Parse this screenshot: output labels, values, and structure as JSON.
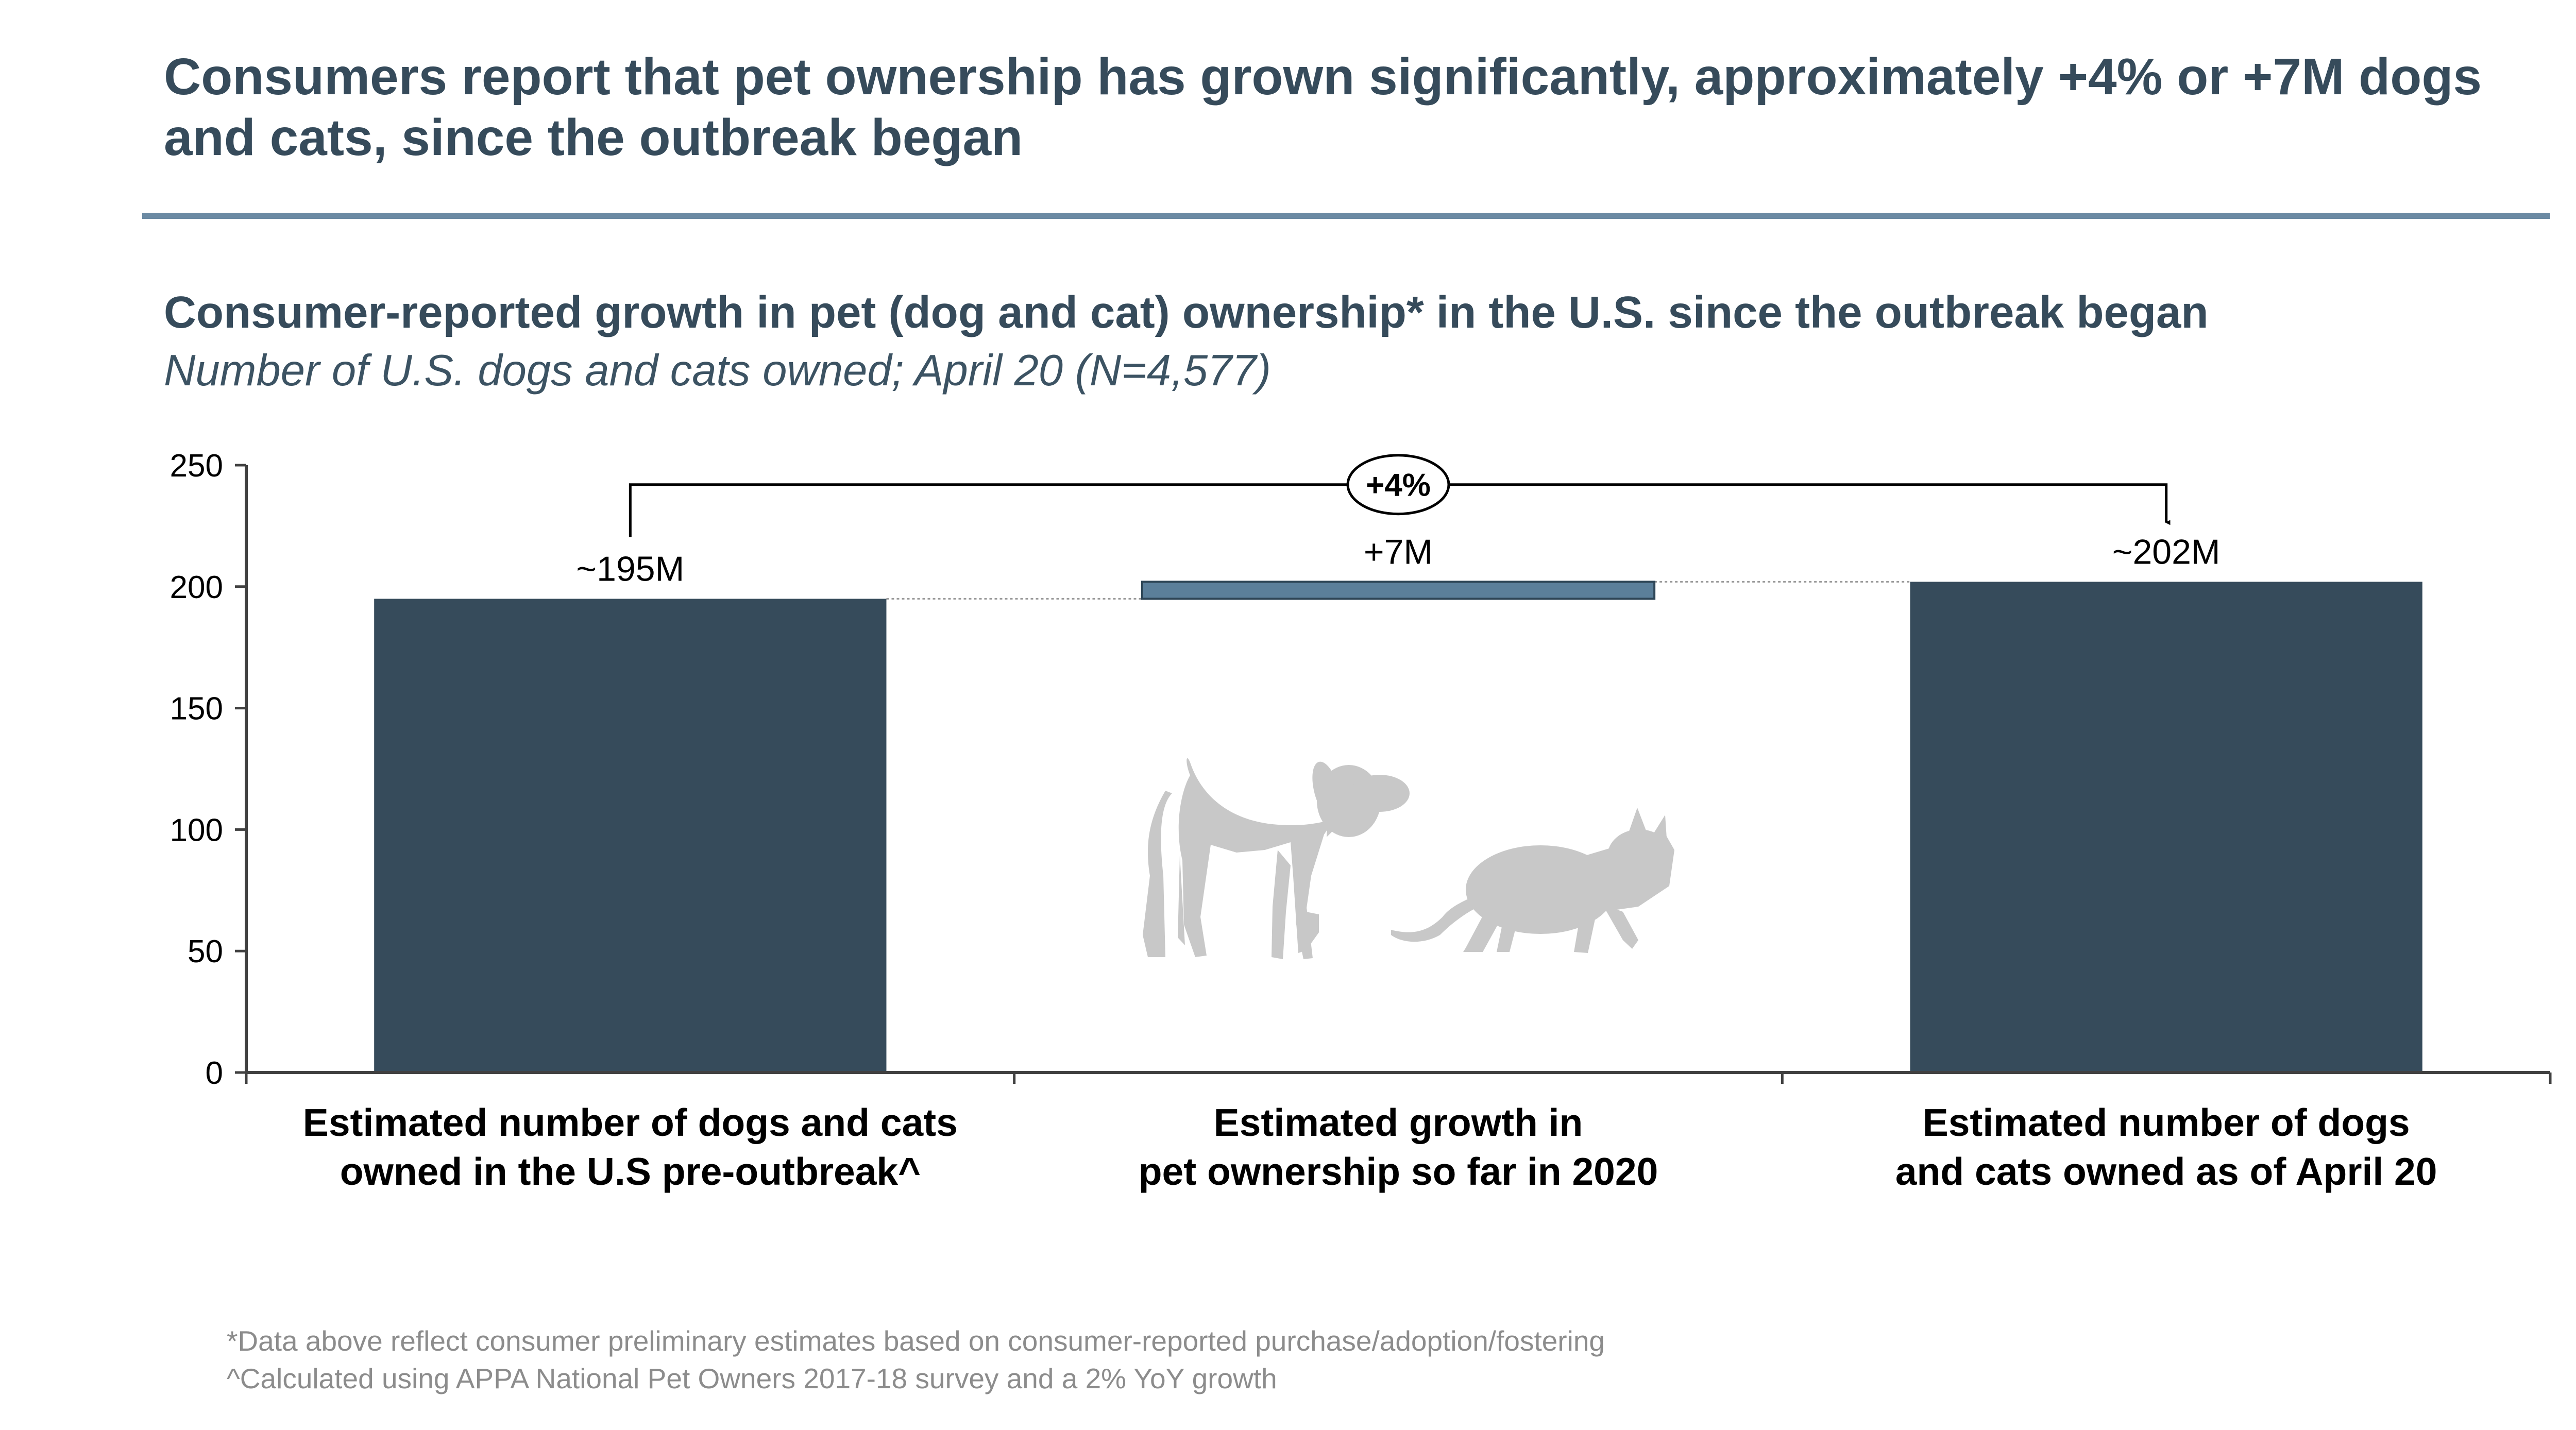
{
  "slide": {
    "title": "Consumers report that pet ownership has grown significantly, approximately +4% or +7M dogs and cats, since the outbreak began"
  },
  "chart_data": {
    "type": "bar",
    "title": "Consumer-reported growth in pet (dog and cat) ownership* in the U.S. since the outbreak began",
    "subtitle": "Number of U.S. dogs and cats owned; April 20 (N=4,577)",
    "categories": [
      "Estimated number of dogs and cats owned in the U.S pre-outbreak^",
      "Estimated growth in pet ownership so far in 2020",
      "Estimated number of dogs and cats owned as of April 20"
    ],
    "category_lines": [
      [
        "Estimated number of dogs and cats",
        "owned in the U.S pre-outbreak^"
      ],
      [
        "Estimated growth in",
        "pet ownership so far in 2020"
      ],
      [
        "Estimated number of dogs",
        "and cats owned as of April 20"
      ]
    ],
    "bars": [
      {
        "base": 0,
        "value": 195,
        "label": "~195M",
        "kind": "total"
      },
      {
        "base": 195,
        "value": 7,
        "label": "+7M",
        "kind": "increment"
      },
      {
        "base": 0,
        "value": 202,
        "label": "~202M",
        "kind": "total"
      }
    ],
    "ylim": [
      0,
      250
    ],
    "yticks": [
      0,
      50,
      100,
      150,
      200,
      250
    ],
    "ytick_labels": [
      "0",
      "50",
      "100",
      "150",
      "200",
      "250"
    ],
    "xlabel": "",
    "ylabel": "",
    "grid": false,
    "legend": "none",
    "annotation": {
      "label": "+4%",
      "from_category": 0,
      "to_category": 2,
      "level": 242
    },
    "colors": {
      "total": "#364b5b",
      "increment": "#5b7f9a",
      "illustration": "#c8c8c8"
    },
    "illustration_icons": [
      "dog-icon",
      "cat-icon"
    ]
  },
  "footnotes": [
    "*Data above reflect consumer preliminary estimates based on consumer-reported purchase/adoption/fostering",
    "^Calculated using APPA National Pet Owners 2017-18 survey and a 2% YoY growth"
  ]
}
